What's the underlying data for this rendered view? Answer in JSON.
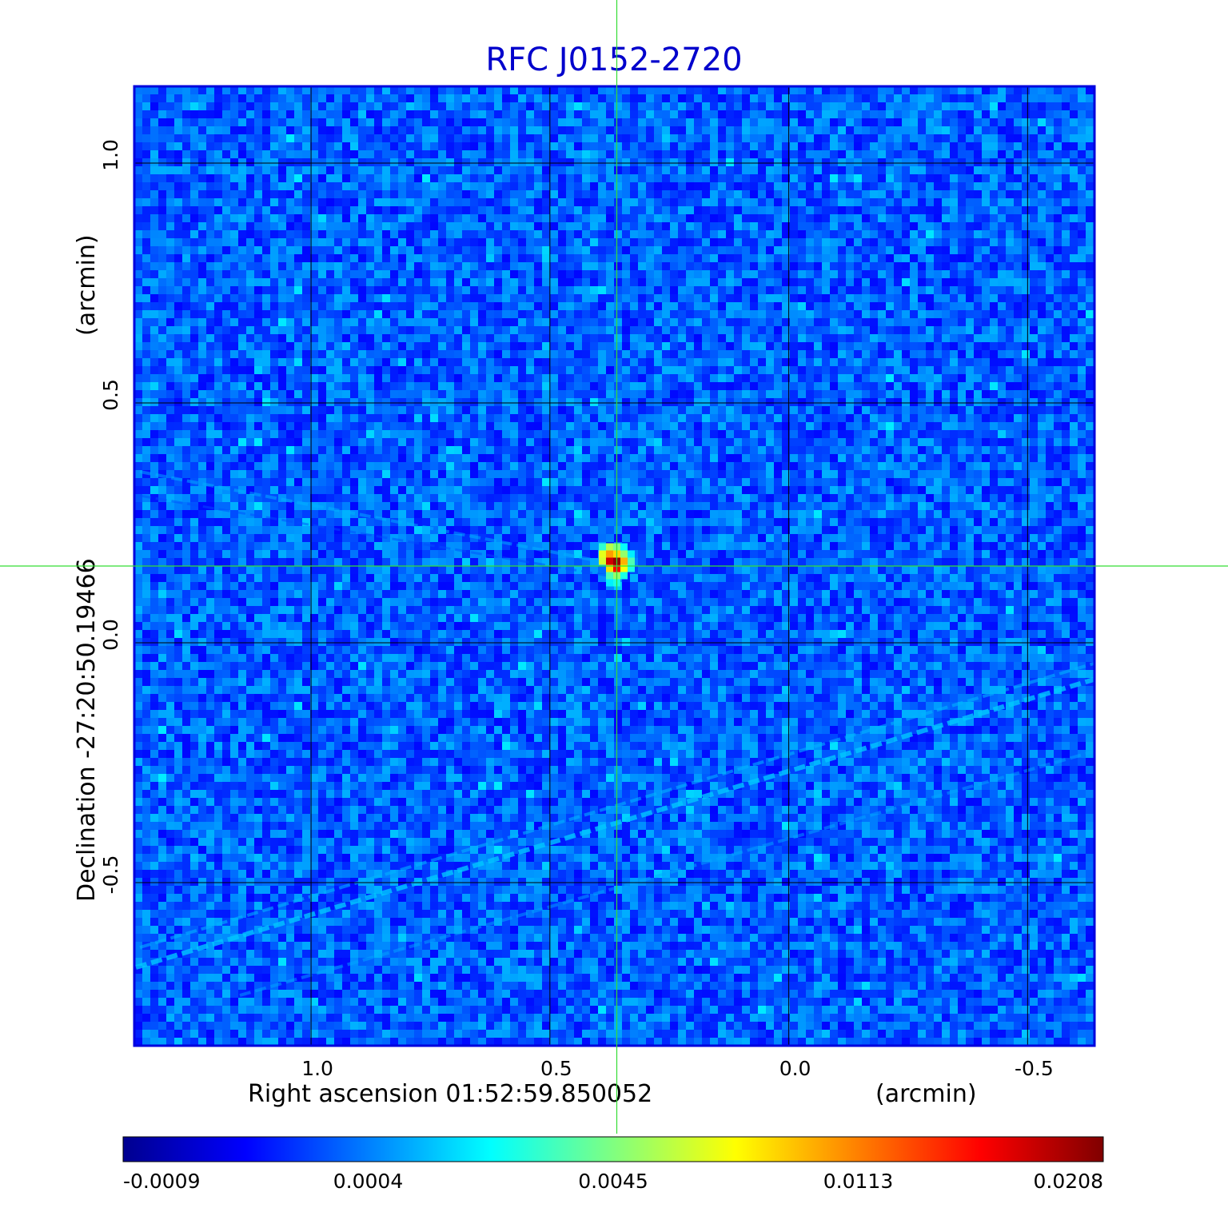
{
  "chart_data": {
    "type": "heatmap",
    "title": "RFC J0152-2720",
    "xlabel": "Right ascension  01:52:59.850052",
    "xunit": "(arcmin)",
    "ylabel": "Declination  -27:20:50.19466",
    "yunit": "(arcmin)",
    "xlim": [
      1.37,
      -0.64
    ],
    "ylim": [
      -0.84,
      1.16
    ],
    "x_ticks": [
      {
        "value": 1.0,
        "label": "1.0"
      },
      {
        "value": 0.5,
        "label": "0.5"
      },
      {
        "value": 0.0,
        "label": "0.0"
      },
      {
        "value": -0.5,
        "label": "-0.5"
      }
    ],
    "y_ticks": [
      {
        "value": 1.0,
        "label": "1.0"
      },
      {
        "value": 0.5,
        "label": "0.5"
      },
      {
        "value": 0.0,
        "label": "0.0"
      },
      {
        "value": -0.5,
        "label": "-0.5"
      }
    ],
    "grid": true,
    "crosshair": {
      "x": 0.36,
      "y": 0.16
    },
    "source": {
      "x": 0.36,
      "y": 0.17,
      "peak": 0.0208
    },
    "colorbar": {
      "colormap": "jet",
      "placement": "bottom",
      "ticks": [
        "-0.0009",
        "0.0004",
        "0.0045",
        "0.0113",
        "0.0208"
      ]
    },
    "colors": {
      "title": "#0000cc",
      "frame": "#0000dd",
      "grid": "#000000",
      "crosshair": "#33dd33"
    }
  }
}
